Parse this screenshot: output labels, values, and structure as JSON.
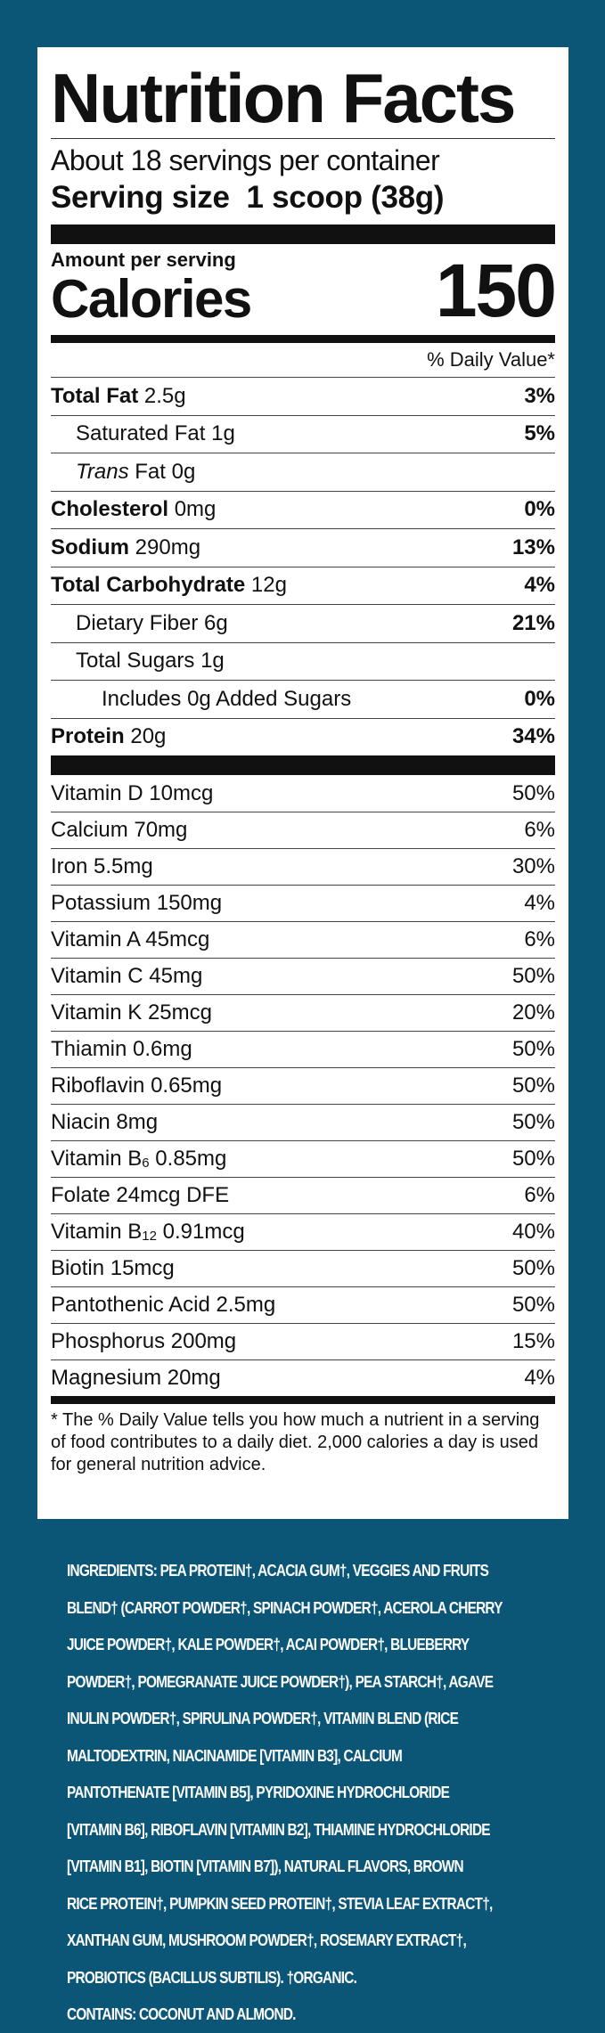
{
  "label": {
    "title": "Nutrition Facts",
    "servings_per_container": "About 18 servings per container",
    "serving_size_label": "Serving size",
    "serving_size_value": "1 scoop (38g)",
    "amount_per_serving": "Amount per serving",
    "calories_label": "Calories",
    "calories_value": "150",
    "daily_value_header": "% Daily Value*",
    "nutrients": [
      {
        "name": "Total Fat",
        "amount": "2.5g",
        "dv": "3%",
        "bold": true,
        "indent": 0
      },
      {
        "name": "Saturated Fat",
        "amount": "1g",
        "dv": "5%",
        "bold": false,
        "indent": 1
      },
      {
        "name": "Trans",
        "name_suffix": "Fat",
        "amount": "0g",
        "dv": "",
        "bold": false,
        "indent": 1,
        "italic": true
      },
      {
        "name": "Cholesterol",
        "amount": "0mg",
        "dv": "0%",
        "bold": true,
        "indent": 0
      },
      {
        "name": "Sodium",
        "amount": "290mg",
        "dv": "13%",
        "bold": true,
        "indent": 0
      },
      {
        "name": "Total Carbohydrate",
        "amount": "12g",
        "dv": "4%",
        "bold": true,
        "indent": 0
      },
      {
        "name": "Dietary Fiber",
        "amount": "6g",
        "dv": "21%",
        "bold": false,
        "indent": 1
      },
      {
        "name": "Total Sugars",
        "amount": "1g",
        "dv": "",
        "bold": false,
        "indent": 1
      },
      {
        "name": "Includes",
        "amount": "0g Added Sugars",
        "dv": "0%",
        "bold": false,
        "indent": 2
      },
      {
        "name": "Protein",
        "amount": "20g",
        "dv": "34%",
        "bold": true,
        "indent": 0
      }
    ],
    "vitamins": [
      {
        "name": "Vitamin D",
        "sub": "",
        "amount": "10mcg",
        "dv": "50%"
      },
      {
        "name": "Calcium",
        "sub": "",
        "amount": "70mg",
        "dv": "6%"
      },
      {
        "name": "Iron",
        "sub": "",
        "amount": "5.5mg",
        "dv": "30%"
      },
      {
        "name": "Potassium",
        "sub": "",
        "amount": "150mg",
        "dv": "4%"
      },
      {
        "name": "Vitamin A",
        "sub": "",
        "amount": "45mcg",
        "dv": "6%"
      },
      {
        "name": "Vitamin C",
        "sub": "",
        "amount": "45mg",
        "dv": "50%"
      },
      {
        "name": "Vitamin K",
        "sub": "",
        "amount": "25mcg",
        "dv": "20%"
      },
      {
        "name": "Thiamin",
        "sub": "",
        "amount": "0.6mg",
        "dv": "50%"
      },
      {
        "name": "Riboflavin",
        "sub": "",
        "amount": "0.65mg",
        "dv": "50%"
      },
      {
        "name": "Niacin",
        "sub": "",
        "amount": "8mg",
        "dv": "50%"
      },
      {
        "name": "Vitamin B",
        "sub": "6",
        "amount": "0.85mg",
        "dv": "50%"
      },
      {
        "name": "Folate",
        "sub": "",
        "amount": "24mcg DFE",
        "dv": "6%"
      },
      {
        "name": "Vitamin B",
        "sub": "12",
        "amount": "0.91mcg",
        "dv": "40%"
      },
      {
        "name": "Biotin",
        "sub": "",
        "amount": "15mcg",
        "dv": "50%"
      },
      {
        "name": "Pantothenic Acid",
        "sub": "",
        "amount": "2.5mg",
        "dv": "50%"
      },
      {
        "name": "Phosphorus",
        "sub": "",
        "amount": "200mg",
        "dv": "15%"
      },
      {
        "name": "Magnesium",
        "sub": "",
        "amount": "20mg",
        "dv": "4%"
      }
    ],
    "footnote": "* The % Daily Value tells you how much a nutrient in a serving of food contributes to a daily diet. 2,000 calories a day is used for general nutrition advice."
  },
  "ingredients": {
    "lines": [
      "INGREDIENTS: PEA PROTEIN†, ACACIA GUM†, VEGGIES AND FRUITS",
      "BLEND† (CARROT  POWDER†, SPINACH POWDER†, ACEROLA CHERRY",
      "JUICE POWDER†, KALE POWDER†, ACAI POWDER†, BLUEBERRY",
      "POWDER†, POMEGRANATE JUICE POWDER†), PEA STARCH†, AGAVE",
      "INULIN POWDER†, SPIRULINA POWDER†, VITAMIN BLEND (RICE",
      "MALTODEXTRIN, NIACINAMIDE [VITAMIN B3], CALCIUM",
      "PANTOTHENATE [VITAMIN B5], PYRIDOXINE HYDROCHLORIDE",
      "[VITAMIN B6], RIBOFLAVIN [VITAMIN B2], THIAMINE HYDROCHLORIDE",
      "[VITAMIN B1], BIOTIN [VITAMIN B7]), NATURAL FLAVORS, BROWN",
      "RICE PROTEIN†, PUMPKIN SEED PROTEIN†, STEVIA LEAF EXTRACT†,",
      "XANTHAN GUM, MUSHROOM POWDER†,  ROSEMARY EXTRACT†,",
      "PROBIOTICS (BACILLUS SUBTILIS). †ORGANIC.",
      "CONTAINS: COCONUT AND ALMOND."
    ]
  },
  "colors": {
    "background": "#0b5677",
    "panel": "#ffffff",
    "text": "#111111"
  }
}
